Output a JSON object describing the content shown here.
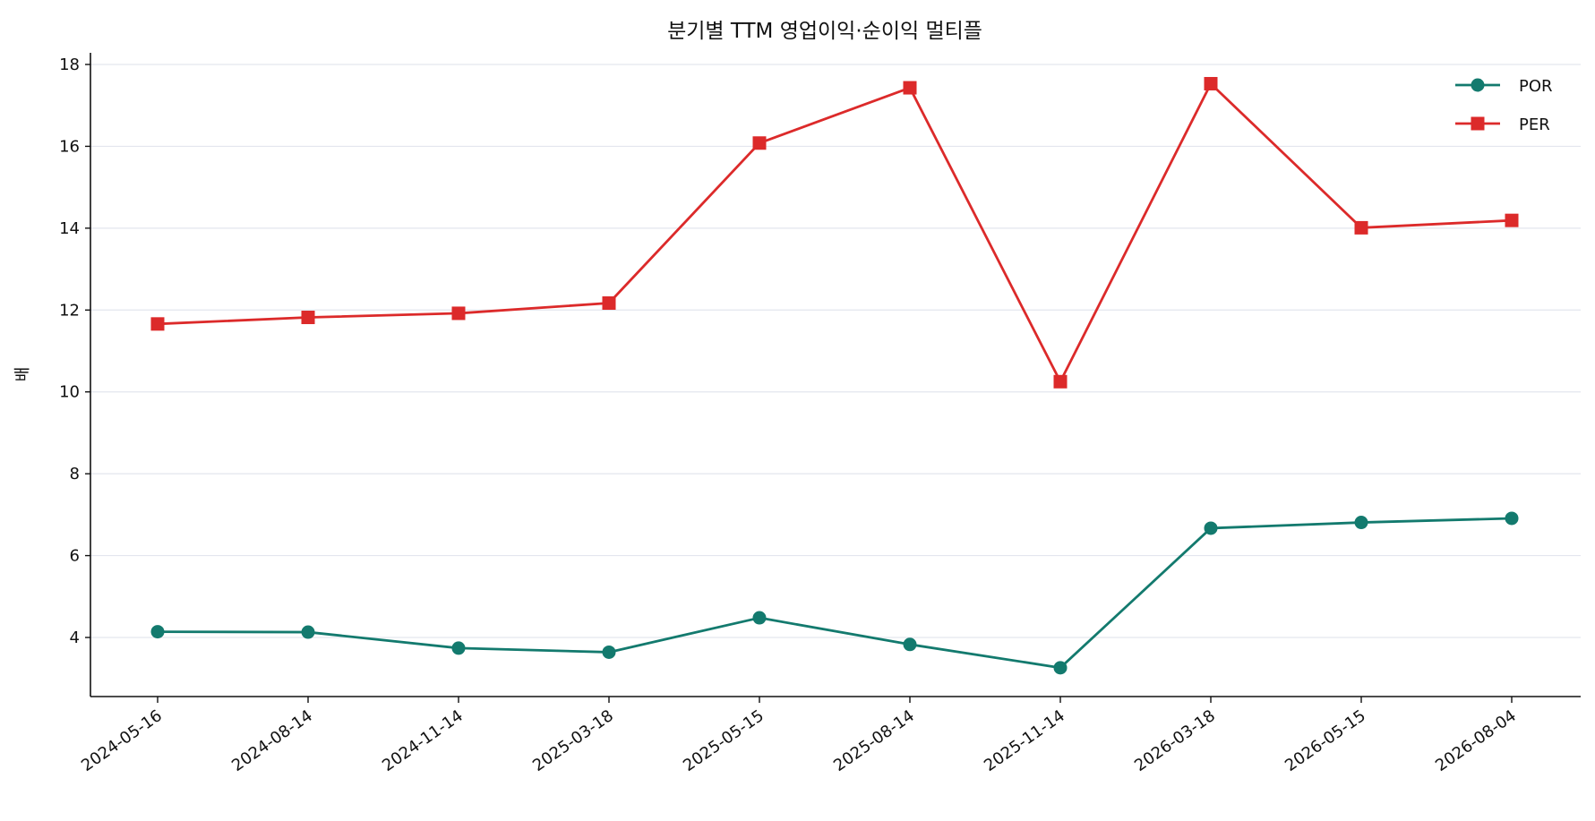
{
  "chart_data": {
    "type": "line",
    "title": "분기별 TTM 영업이익·순이익 멀티플",
    "xlabel": "",
    "ylabel": "배",
    "categories": [
      "2024-05-16",
      "2024-08-14",
      "2024-11-14",
      "2025-03-18",
      "2025-05-15",
      "2025-08-14",
      "2025-11-14",
      "2026-03-18",
      "2026-05-15",
      "2026-08-04"
    ],
    "ylim": [
      2.6,
      18.3
    ],
    "yticks": [
      4,
      6,
      8,
      10,
      12,
      14,
      16,
      18
    ],
    "grid": "y",
    "legend_position": "top-right",
    "series": [
      {
        "name": "POR",
        "color": "#137a6e",
        "marker": "circle",
        "values": [
          4.14,
          4.13,
          3.74,
          3.64,
          4.48,
          3.83,
          3.26,
          6.67,
          6.81,
          6.91
        ]
      },
      {
        "name": "PER",
        "color": "#dc2a2a",
        "marker": "square",
        "values": [
          11.66,
          11.82,
          11.92,
          12.17,
          16.08,
          17.43,
          10.25,
          17.53,
          14.01,
          14.19
        ]
      }
    ]
  }
}
